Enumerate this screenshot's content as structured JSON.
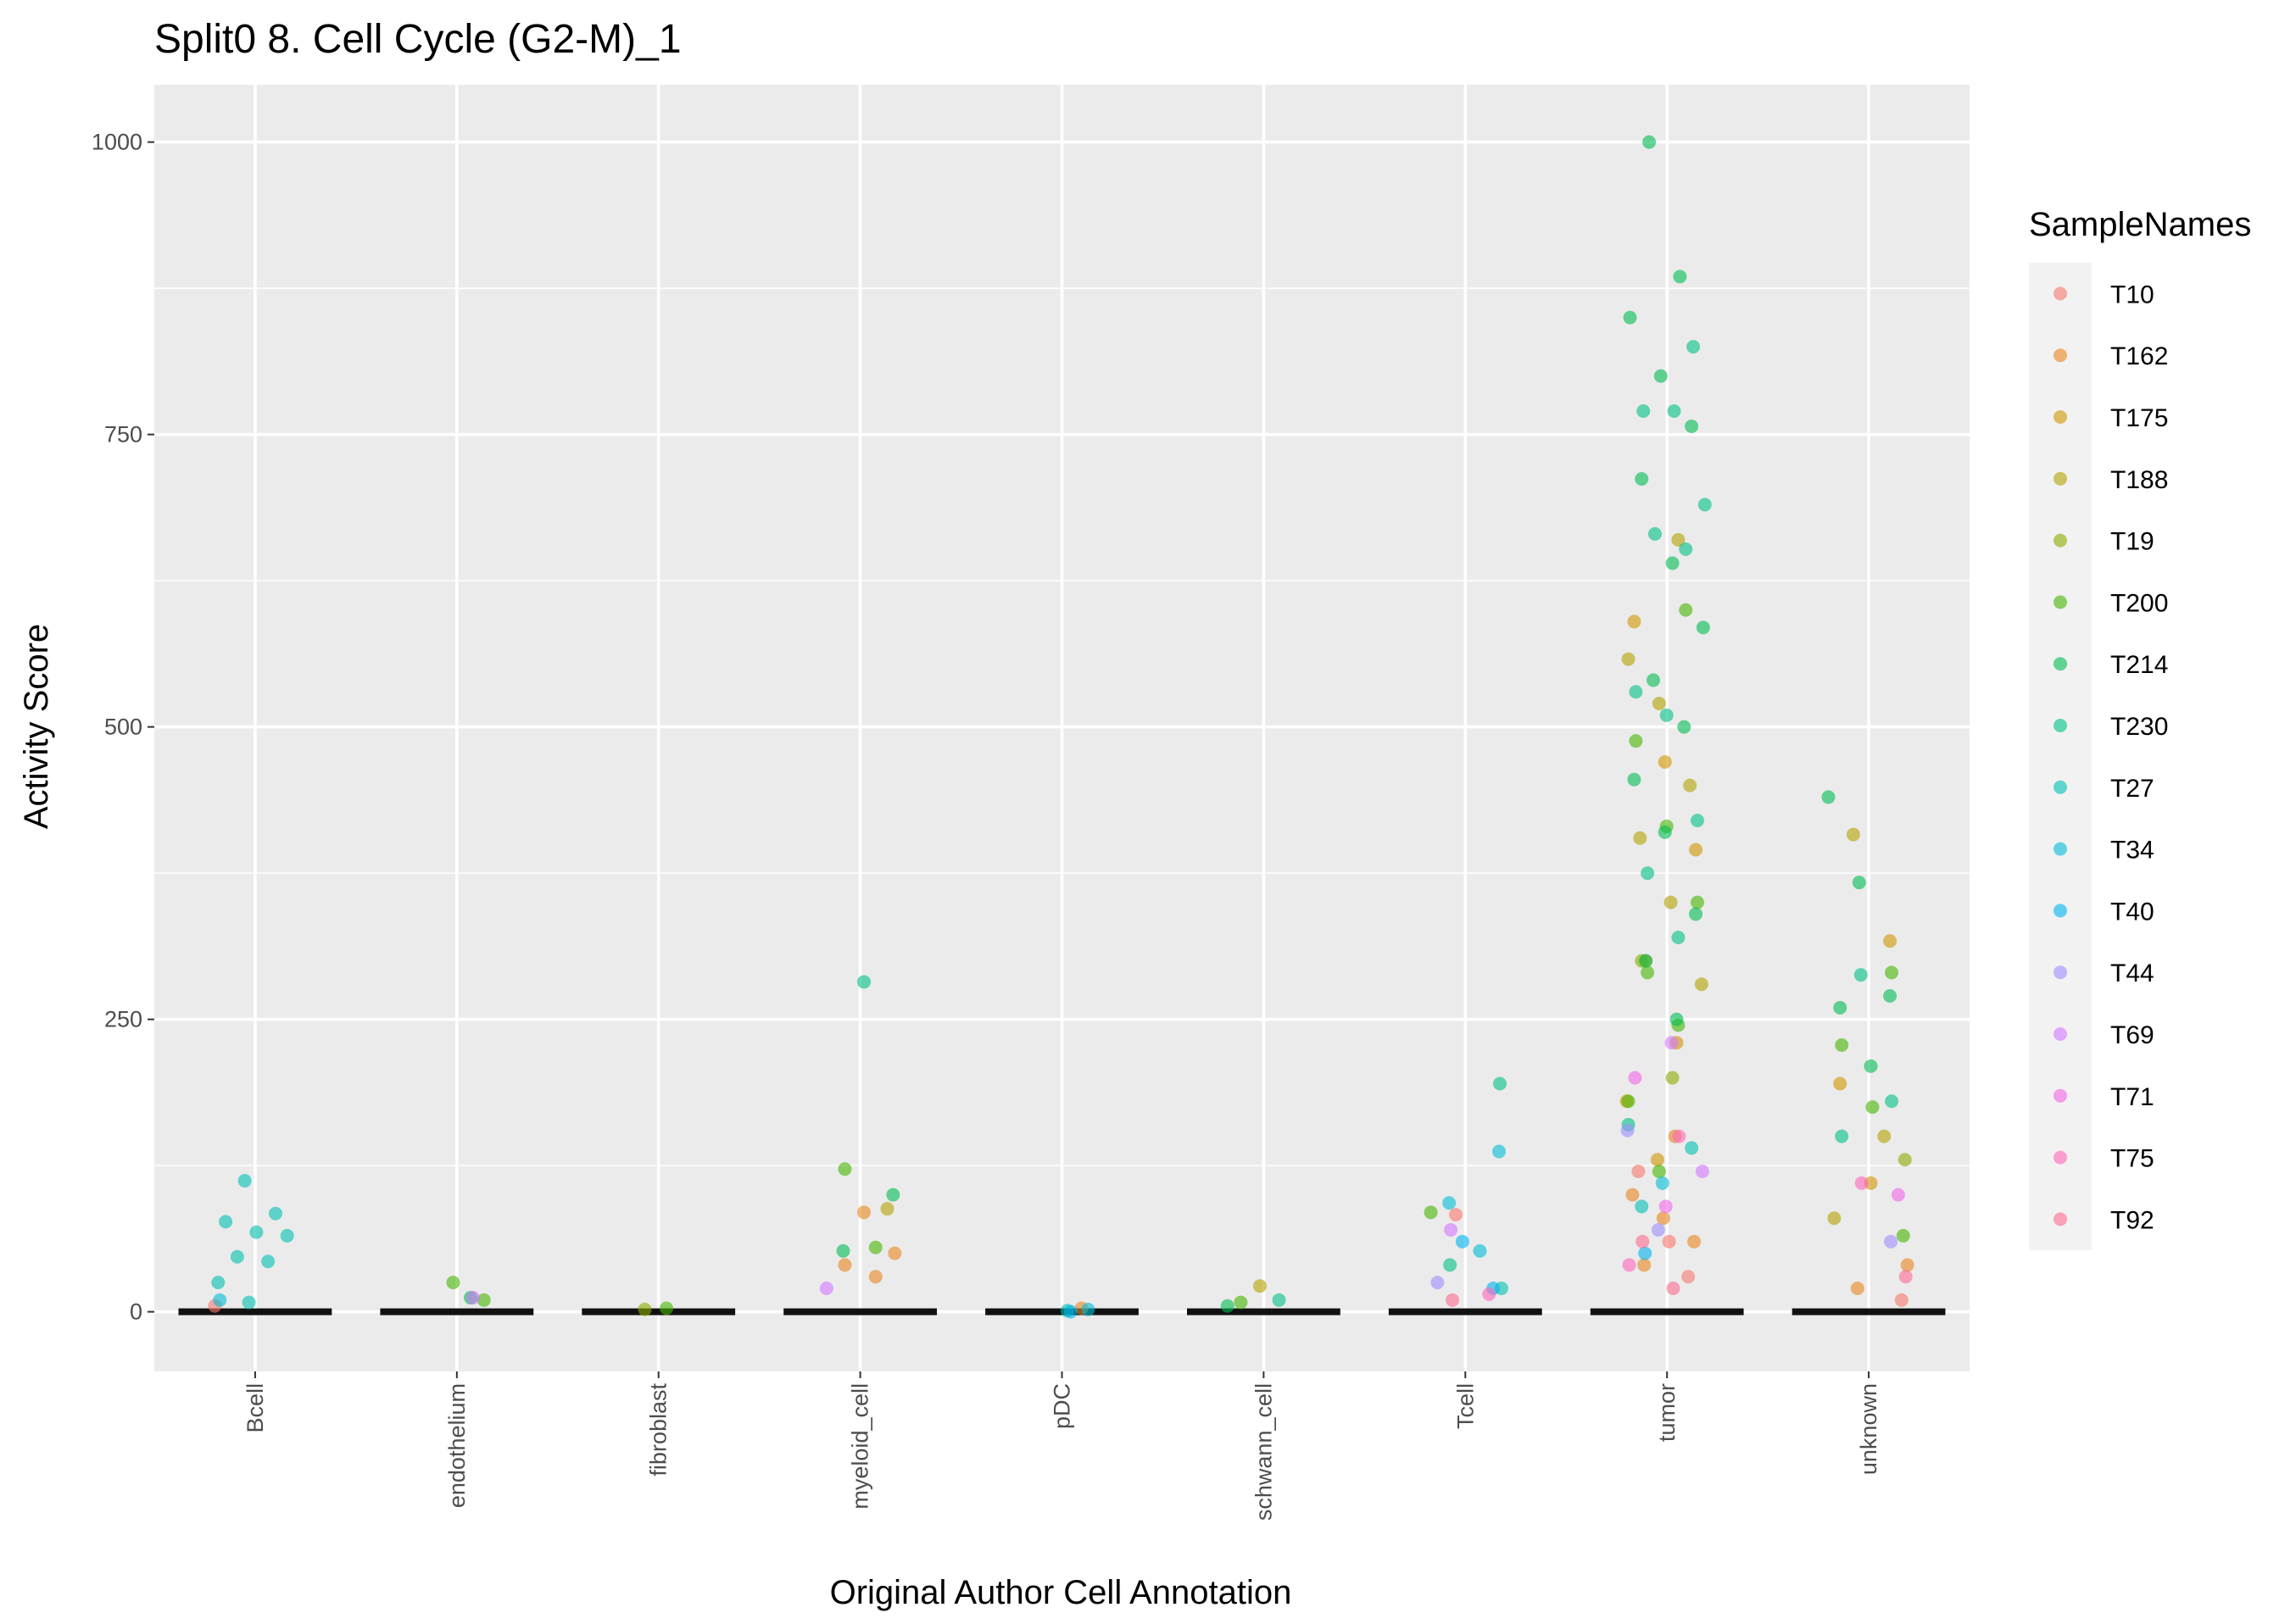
{
  "chart_data": {
    "type": "strip",
    "title": "Split0 8. Cell Cycle (G2-M)_1",
    "x_label": "Original Author Cell Annotation",
    "y_label": "Activity Score",
    "legend_title": "SampleNames",
    "legend_position": "right",
    "grid": true,
    "categories": [
      "Bcell",
      "endothelium",
      "fibroblast",
      "myeloid_cell",
      "pDC",
      "schwann_cell",
      "Tcell",
      "tumor",
      "unknown"
    ],
    "ylim": [
      -51,
      1049
    ],
    "yticks": [
      0,
      250,
      500,
      750,
      1000
    ],
    "series": [
      {
        "name": "T10",
        "color": "#F8766D",
        "x": [
          "Bcell",
          "Tcell",
          "tumor",
          "tumor",
          "tumor",
          "unknown"
        ],
        "values": [
          5,
          83,
          30,
          120,
          60,
          10
        ]
      },
      {
        "name": "T162",
        "color": "#E7851E",
        "x": [
          "myeloid_cell",
          "myeloid_cell",
          "myeloid_cell",
          "myeloid_cell",
          "tumor",
          "tumor",
          "tumor",
          "tumor",
          "tumor",
          "unknown",
          "unknown",
          "pDC"
        ],
        "values": [
          85,
          50,
          40,
          30,
          100,
          80,
          60,
          40,
          150,
          40,
          20,
          3
        ]
      },
      {
        "name": "T175",
        "color": "#D09400",
        "x": [
          "tumor",
          "tumor",
          "tumor",
          "tumor",
          "tumor",
          "tumor",
          "tumor",
          "unknown",
          "unknown",
          "unknown"
        ],
        "values": [
          590,
          470,
          395,
          300,
          230,
          180,
          130,
          317,
          195,
          110
        ]
      },
      {
        "name": "T188",
        "color": "#B2A100",
        "x": [
          "tumor",
          "tumor",
          "tumor",
          "tumor",
          "tumor",
          "tumor",
          "tumor",
          "unknown",
          "unknown",
          "unknown",
          "schwann_cell",
          "myeloid_cell"
        ],
        "values": [
          660,
          558,
          520,
          450,
          405,
          350,
          280,
          408,
          150,
          80,
          22,
          88
        ]
      },
      {
        "name": "T19",
        "color": "#89AC00",
        "x": [
          "tumor",
          "tumor",
          "unknown",
          "fibroblast"
        ],
        "values": [
          300,
          200,
          130,
          2
        ]
      },
      {
        "name": "T200",
        "color": "#45B500",
        "x": [
          "tumor",
          "tumor",
          "tumor",
          "tumor",
          "tumor",
          "tumor",
          "tumor",
          "tumor",
          "unknown",
          "unknown",
          "unknown",
          "unknown",
          "myeloid_cell",
          "myeloid_cell",
          "Tcell",
          "endothelium",
          "endothelium",
          "schwann_cell",
          "fibroblast"
        ],
        "values": [
          600,
          488,
          415,
          350,
          290,
          245,
          180,
          120,
          290,
          228,
          175,
          65,
          122,
          55,
          85,
          25,
          10,
          8,
          3
        ]
      },
      {
        "name": "T214",
        "color": "#00BC51",
        "x": [
          "tumor",
          "tumor",
          "tumor",
          "tumor",
          "tumor",
          "tumor",
          "tumor",
          "tumor",
          "tumor",
          "tumor",
          "tumor",
          "tumor",
          "tumor",
          "tumor",
          "tumor",
          "unknown",
          "unknown",
          "unknown",
          "unknown",
          "unknown",
          "myeloid_cell",
          "myeloid_cell",
          "endothelium",
          "schwann_cell"
        ],
        "values": [
          1000,
          885,
          850,
          800,
          757,
          712,
          640,
          585,
          540,
          500,
          455,
          410,
          340,
          300,
          250,
          440,
          367,
          270,
          260,
          210,
          100,
          52,
          12,
          5
        ]
      },
      {
        "name": "T230",
        "color": "#00C087",
        "x": [
          "tumor",
          "tumor",
          "tumor",
          "tumor",
          "tumor",
          "tumor",
          "tumor",
          "tumor",
          "tumor",
          "tumor",
          "tumor",
          "tumor",
          "unknown",
          "unknown",
          "unknown",
          "myeloid_cell",
          "Tcell",
          "Tcell",
          "schwann_cell"
        ],
        "values": [
          825,
          770,
          770,
          690,
          665,
          652,
          530,
          510,
          420,
          375,
          320,
          160,
          288,
          180,
          150,
          282,
          195,
          40,
          10
        ]
      },
      {
        "name": "T27",
        "color": "#00C0B2",
        "x": [
          "Bcell",
          "Bcell",
          "Bcell",
          "Bcell",
          "Bcell",
          "Bcell",
          "Bcell",
          "Bcell",
          "Bcell",
          "tumor",
          "tumor",
          "pDC",
          "Tcell"
        ],
        "values": [
          112,
          84,
          77,
          68,
          65,
          47,
          43,
          25,
          8,
          140,
          90,
          1,
          20
        ]
      },
      {
        "name": "T34",
        "color": "#00BCD6",
        "x": [
          "Tcell",
          "Tcell",
          "Tcell",
          "Bcell",
          "tumor",
          "pDC"
        ],
        "values": [
          137,
          93,
          52,
          10,
          110,
          2
        ]
      },
      {
        "name": "T40",
        "color": "#00B3F2",
        "x": [
          "Tcell",
          "Tcell",
          "tumor",
          "pDC"
        ],
        "values": [
          60,
          20,
          50,
          0
        ]
      },
      {
        "name": "T44",
        "color": "#9C8DFF",
        "x": [
          "tumor",
          "tumor",
          "unknown",
          "Tcell"
        ],
        "values": [
          155,
          70,
          60,
          25
        ]
      },
      {
        "name": "T69",
        "color": "#D277FF",
        "x": [
          "tumor",
          "tumor",
          "Tcell",
          "endothelium",
          "myeloid_cell"
        ],
        "values": [
          230,
          120,
          70,
          12,
          20
        ]
      },
      {
        "name": "T71",
        "color": "#F166E8",
        "x": [
          "tumor",
          "tumor",
          "unknown"
        ],
        "values": [
          200,
          90,
          100
        ]
      },
      {
        "name": "T75",
        "color": "#FF65BA",
        "x": [
          "tumor",
          "tumor",
          "unknown",
          "Tcell"
        ],
        "values": [
          150,
          40,
          110,
          15
        ]
      },
      {
        "name": "T92",
        "color": "#FC6A8F",
        "x": [
          "tumor",
          "tumor",
          "unknown",
          "Tcell"
        ],
        "values": [
          60,
          20,
          30,
          10
        ]
      }
    ]
  }
}
